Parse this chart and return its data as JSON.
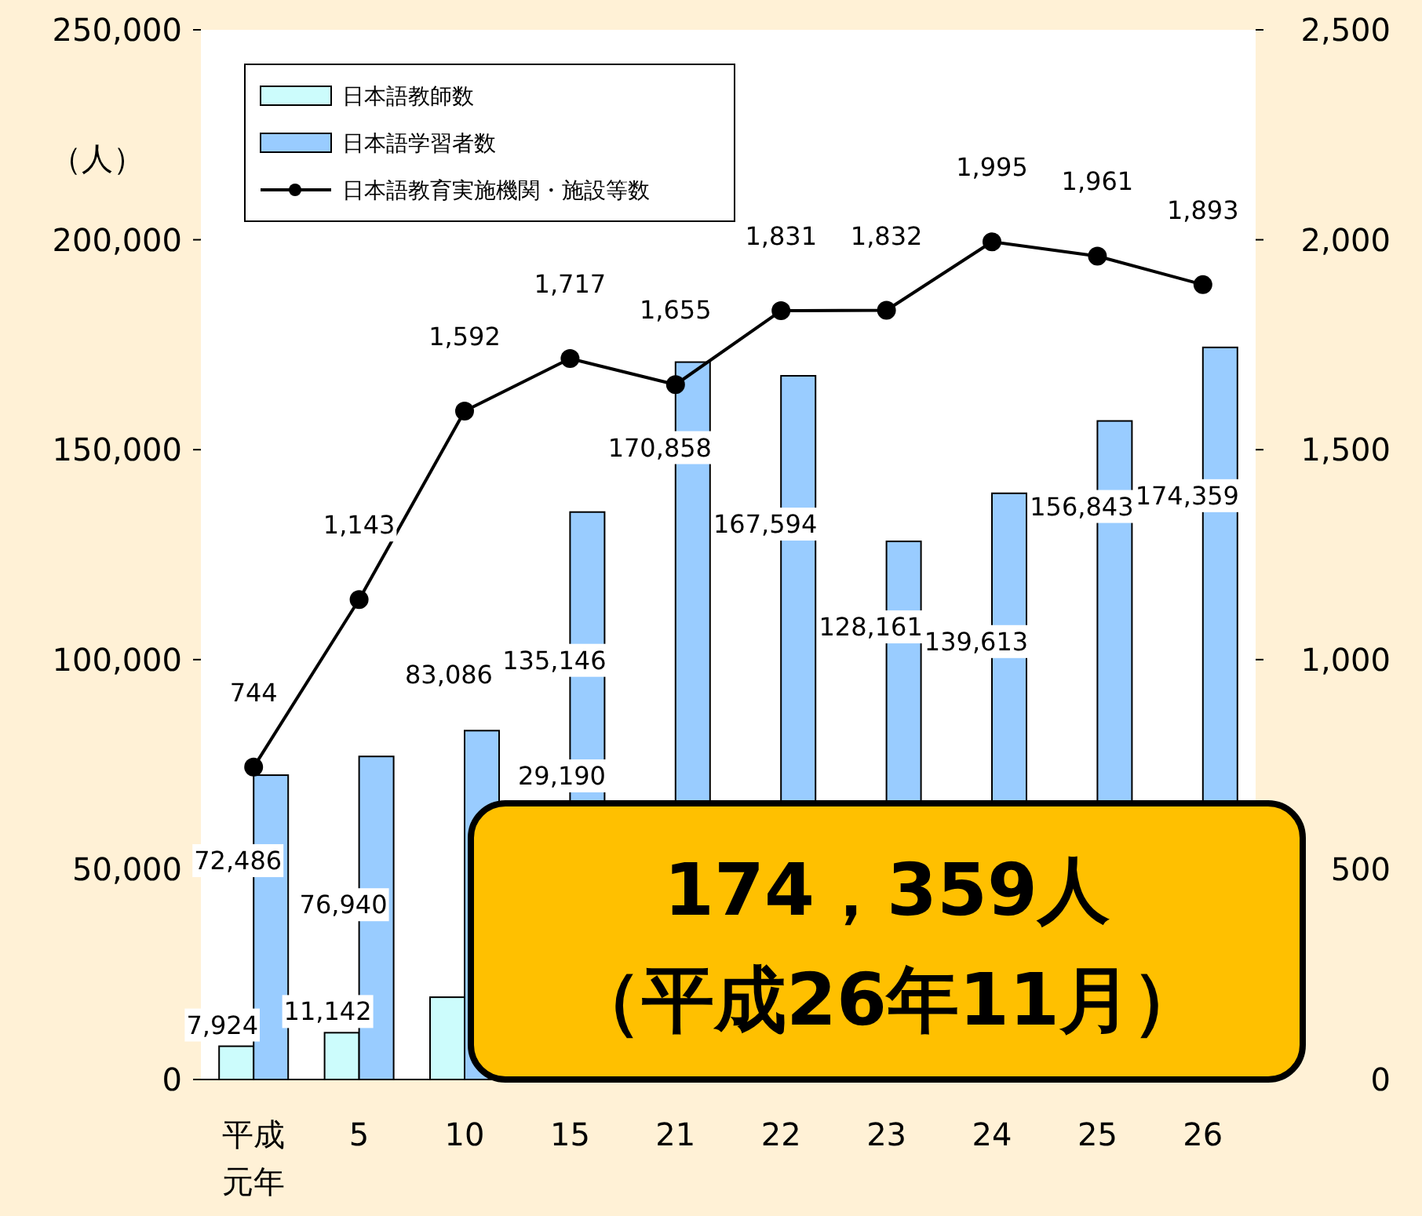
{
  "chart_data": {
    "type": "bar",
    "ylabel": "（人）",
    "categories": [
      "平成元年",
      "5",
      "10",
      "15",
      "21",
      "22",
      "23",
      "24",
      "25",
      "26"
    ],
    "series": [
      {
        "name": "日本語教師数",
        "color": "#ccfcfc",
        "values": [
          7924,
          11142,
          19600,
          null,
          null,
          null,
          null,
          null,
          null,
          null
        ],
        "value_labels": [
          "7,924",
          "11,142",
          null,
          null,
          null,
          null,
          null,
          null,
          null,
          null
        ]
      },
      {
        "name": "日本語学習者数",
        "color": "#99ccff",
        "values": [
          72486,
          76940,
          83086,
          135146,
          170858,
          167594,
          128161,
          139613,
          156843,
          174359
        ],
        "value_labels": [
          "72,486",
          "76,940",
          "83,086",
          "135,146",
          "170,858",
          "167,594",
          "128,161",
          "139,613",
          "156,843",
          "174,359"
        ]
      },
      {
        "name": "日本語教育実施機関・施設等数",
        "type": "line",
        "axis": "y2",
        "color": "#000000",
        "marker": "circle",
        "values": [
          744,
          1143,
          1592,
          1717,
          1655,
          1831,
          1832,
          1995,
          1961,
          1893
        ],
        "value_labels": [
          "744",
          "1,143",
          "1,592",
          "1,717",
          "1,655",
          "1,831",
          "1,832",
          "1,995",
          "1,961",
          "1,893"
        ]
      }
    ],
    "ylim": [
      0,
      250000
    ],
    "yticks": [
      {
        "value": 0,
        "label": "0"
      },
      {
        "value": 50000,
        "label": "50,000"
      },
      {
        "value": 100000,
        "label": "100,000"
      },
      {
        "value": 150000,
        "label": "150,000"
      },
      {
        "value": 200000,
        "label": "200,000"
      },
      {
        "value": 250000,
        "label": "250,000"
      }
    ],
    "y2lim": [
      0,
      2500
    ],
    "y2ticks": [
      {
        "value": 0,
        "label": "0"
      },
      {
        "value": 500,
        "label": "500"
      },
      {
        "value": 1000,
        "label": "1,000"
      },
      {
        "value": 1500,
        "label": "1,500"
      },
      {
        "value": 2000,
        "label": "2,000"
      },
      {
        "value": 2500,
        "label": "2,500"
      }
    ],
    "legend": "top left",
    "grid": false,
    "annotations": [
      "29,190",
      "174，359人",
      "（平成26年11月）"
    ]
  }
}
